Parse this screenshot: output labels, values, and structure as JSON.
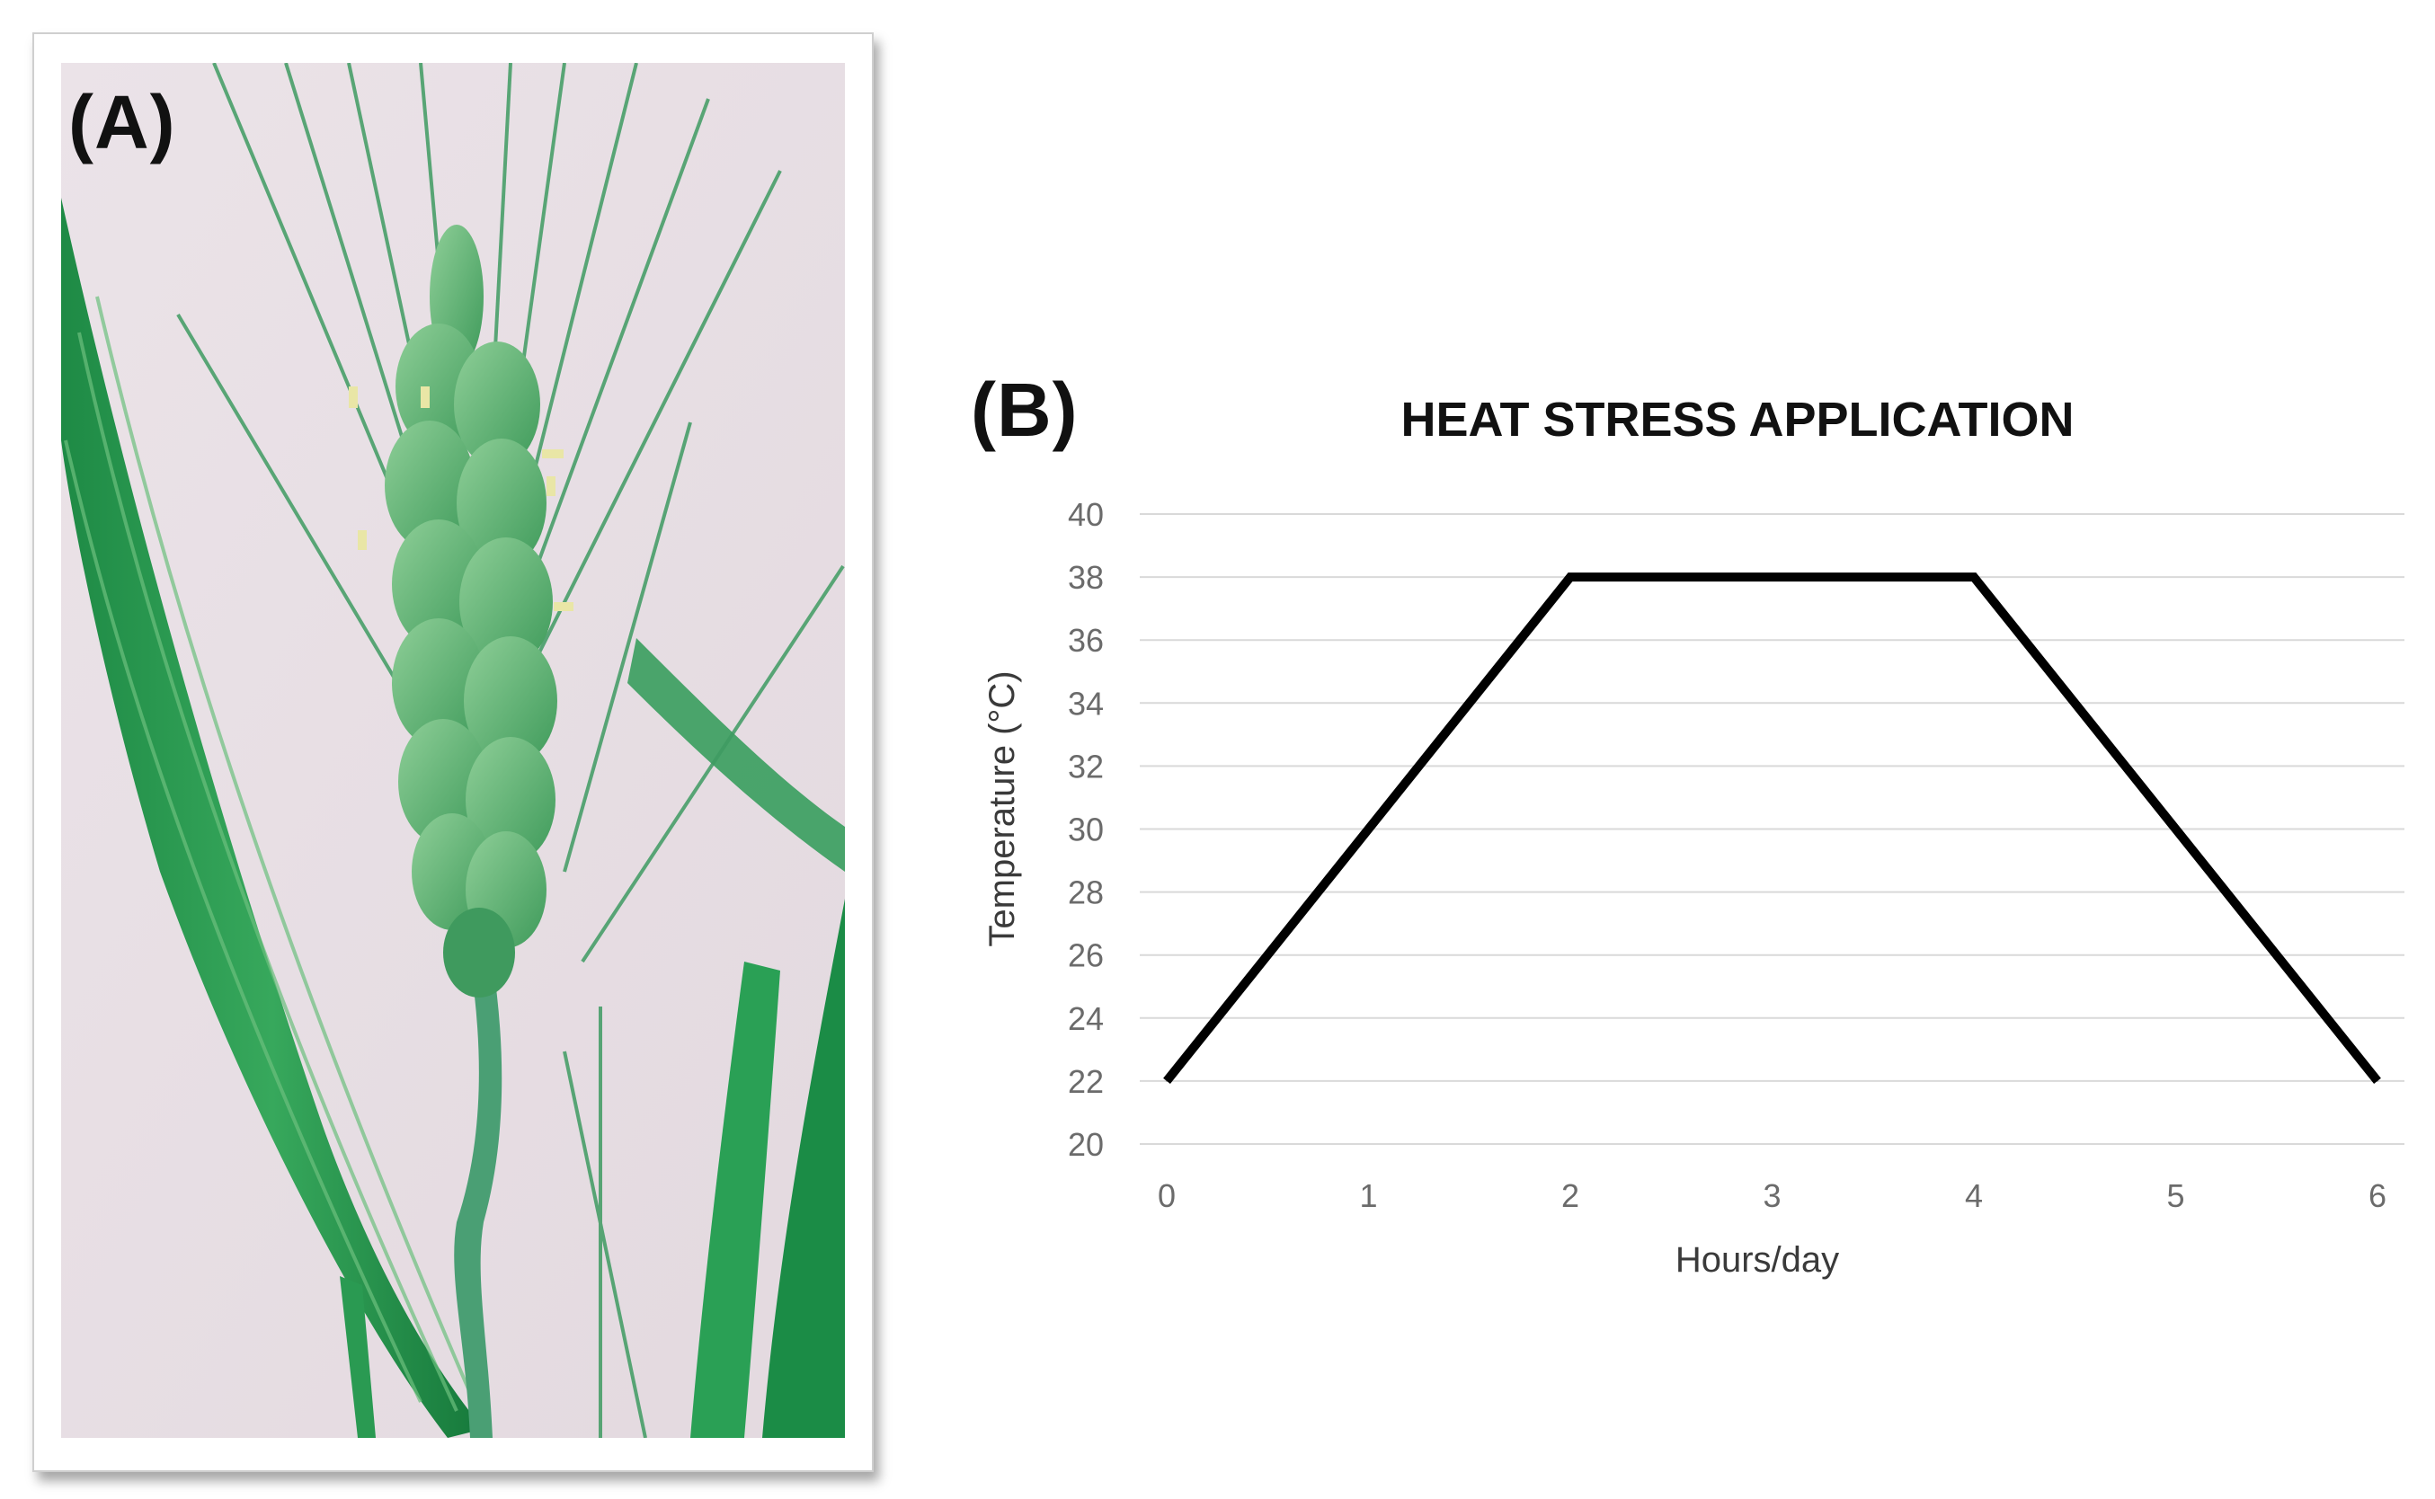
{
  "panels": {
    "a": {
      "label": "(A)"
    },
    "b": {
      "label": "(B)"
    }
  },
  "chart_data": {
    "type": "line",
    "title": "HEAT STRESS APPLICATION",
    "xlabel": "Hours/day",
    "ylabel": "Temperature (°C)",
    "x": [
      0,
      2,
      4,
      6
    ],
    "series": [
      {
        "values": [
          22,
          38,
          38,
          22
        ],
        "color": "#000000"
      }
    ],
    "xticks": [
      "0",
      "1",
      "2",
      "3",
      "4",
      "5",
      "6"
    ],
    "yticks": [
      "20",
      "22",
      "24",
      "26",
      "28",
      "30",
      "32",
      "34",
      "36",
      "38",
      "40"
    ],
    "xlim": [
      0,
      6
    ],
    "ylim": [
      20,
      40
    ],
    "grid": "horizontal",
    "gridColor": "#d9d9d9"
  }
}
